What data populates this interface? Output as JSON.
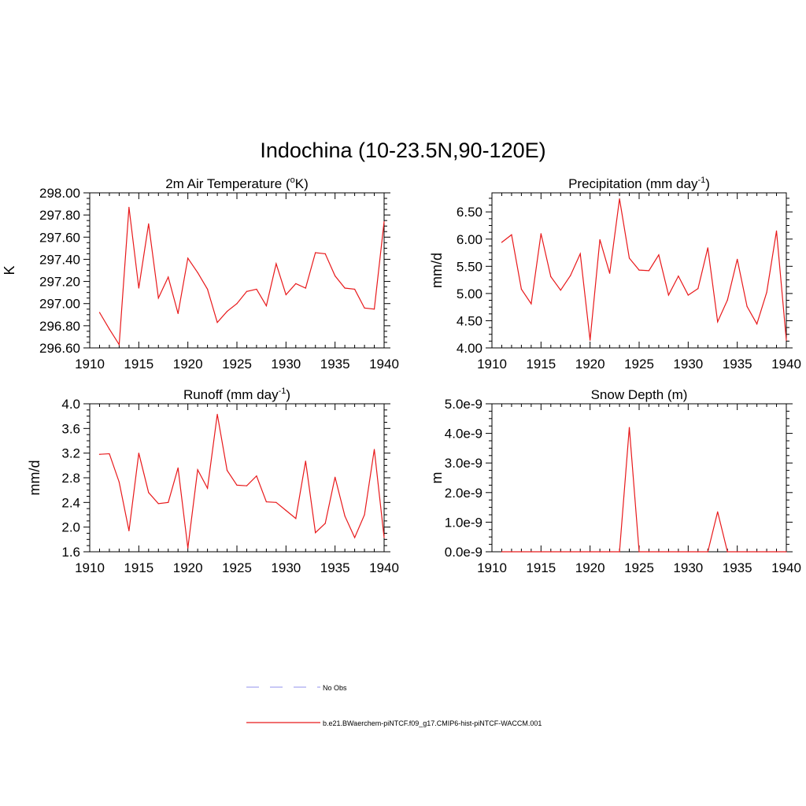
{
  "figure": {
    "title": "Indochina (10-23.5N,90-120E)"
  },
  "chart_data": [
    {
      "type": "line",
      "title_parts": [
        "2m Air Temperature (",
        "o",
        "K)"
      ],
      "ylabel": "K",
      "xlabel": "",
      "xlim": [
        1910,
        1940
      ],
      "ylim": [
        296.6,
        298.0
      ],
      "x_ticks": [
        1910,
        1915,
        1920,
        1925,
        1930,
        1935,
        1940
      ],
      "y_ticks": [
        296.6,
        296.8,
        297.0,
        297.2,
        297.4,
        297.6,
        297.8,
        298.0
      ],
      "y_tick_labels": [
        "296.60",
        "296.80",
        "297.00",
        "297.20",
        "297.40",
        "297.60",
        "297.80",
        "298.00"
      ],
      "series": [
        {
          "color": "#e8191b",
          "x": [
            1911,
            1912,
            1913,
            1914,
            1915,
            1916,
            1917,
            1918,
            1919,
            1920,
            1921,
            1922,
            1923,
            1924,
            1925,
            1926,
            1927,
            1928,
            1929,
            1930,
            1931,
            1932,
            1933,
            1934,
            1935,
            1936,
            1937,
            1938,
            1939,
            1940
          ],
          "values": [
            296.92,
            296.77,
            296.63,
            297.87,
            297.14,
            297.72,
            297.05,
            297.24,
            296.91,
            297.41,
            297.28,
            297.13,
            296.83,
            296.93,
            297.0,
            297.11,
            297.13,
            296.98,
            297.36,
            297.08,
            297.18,
            297.14,
            297.46,
            297.45,
            297.25,
            297.14,
            297.13,
            296.96,
            296.95,
            297.74
          ]
        }
      ]
    },
    {
      "type": "line",
      "title_parts": [
        "Precipitation (mm day",
        "-1",
        ")"
      ],
      "ylabel": "mm/d",
      "xlabel": "",
      "xlim": [
        1910,
        1940
      ],
      "ylim": [
        4.0,
        6.85
      ],
      "x_ticks": [
        1910,
        1915,
        1920,
        1925,
        1930,
        1935,
        1940
      ],
      "y_ticks": [
        4.0,
        4.5,
        5.0,
        5.5,
        6.0,
        6.5
      ],
      "y_tick_labels": [
        "4.00",
        "4.50",
        "5.00",
        "5.50",
        "6.00",
        "6.50"
      ],
      "series": [
        {
          "color": "#e8191b",
          "x": [
            1911,
            1912,
            1913,
            1914,
            1915,
            1916,
            1917,
            1918,
            1919,
            1920,
            1921,
            1922,
            1923,
            1924,
            1925,
            1926,
            1927,
            1928,
            1929,
            1930,
            1931,
            1932,
            1933,
            1934,
            1935,
            1936,
            1937,
            1938,
            1939,
            1940
          ],
          "values": [
            5.94,
            6.08,
            5.08,
            4.81,
            6.1,
            5.31,
            5.06,
            5.33,
            5.73,
            4.14,
            5.99,
            5.37,
            6.74,
            5.65,
            5.43,
            5.42,
            5.71,
            4.97,
            5.32,
            4.97,
            5.09,
            5.84,
            4.48,
            4.88,
            5.63,
            4.76,
            4.44,
            5.02,
            6.15,
            4.14
          ]
        }
      ]
    },
    {
      "type": "line",
      "title_parts": [
        "Runoff (mm day",
        "-1",
        ")"
      ],
      "ylabel": "mm/d",
      "xlabel": "",
      "xlim": [
        1910,
        1940
      ],
      "ylim": [
        1.6,
        4.0
      ],
      "x_ticks": [
        1910,
        1915,
        1920,
        1925,
        1930,
        1935,
        1940
      ],
      "y_ticks": [
        1.6,
        2.0,
        2.4,
        2.8,
        3.2,
        3.6,
        4.0
      ],
      "y_tick_labels": [
        "1.6",
        "2.0",
        "2.4",
        "2.8",
        "3.2",
        "3.6",
        "4.0"
      ],
      "series": [
        {
          "color": "#e8191b",
          "x": [
            1911,
            1912,
            1913,
            1914,
            1915,
            1916,
            1917,
            1918,
            1919,
            1920,
            1921,
            1922,
            1923,
            1924,
            1925,
            1926,
            1927,
            1928,
            1929,
            1930,
            1931,
            1932,
            1933,
            1934,
            1935,
            1936,
            1937,
            1938,
            1939,
            1940
          ],
          "values": [
            3.18,
            3.19,
            2.73,
            1.94,
            3.2,
            2.56,
            2.38,
            2.4,
            2.96,
            1.66,
            2.93,
            2.63,
            3.83,
            2.92,
            2.68,
            2.67,
            2.83,
            2.41,
            2.4,
            2.27,
            2.14,
            3.07,
            1.91,
            2.06,
            2.81,
            2.18,
            1.83,
            2.2,
            3.26,
            1.83
          ]
        }
      ]
    },
    {
      "type": "line",
      "title_parts": [
        "Snow Depth (m)"
      ],
      "ylabel": "m",
      "xlabel": "",
      "xlim": [
        1910,
        1940
      ],
      "ylim": [
        0,
        5e-09
      ],
      "x_ticks": [
        1910,
        1915,
        1920,
        1925,
        1930,
        1935,
        1940
      ],
      "y_ticks": [
        0,
        1e-09,
        2e-09,
        3e-09,
        4e-09,
        5e-09
      ],
      "y_tick_labels": [
        "0.0e-9",
        "1.0e-9",
        "2.0e-9",
        "3.0e-9",
        "4.0e-9",
        "5.0e-9"
      ],
      "series": [
        {
          "color": "#e8191b",
          "x": [
            1911,
            1912,
            1913,
            1914,
            1915,
            1916,
            1917,
            1918,
            1919,
            1920,
            1921,
            1922,
            1923,
            1924,
            1925,
            1926,
            1927,
            1928,
            1929,
            1930,
            1931,
            1932,
            1933,
            1934,
            1935,
            1936,
            1937,
            1938,
            1939,
            1940
          ],
          "values": [
            0,
            0,
            0,
            0,
            0,
            0,
            0,
            0,
            0,
            0,
            0,
            0,
            0,
            4.2e-09,
            0,
            0,
            0,
            0,
            0,
            0,
            0,
            0,
            1.35e-09,
            0,
            0,
            0,
            0,
            0,
            0,
            0
          ]
        }
      ]
    }
  ],
  "legend": {
    "items": [
      {
        "label": "No Obs",
        "color": "#a8a8f0",
        "style": "dashed"
      },
      {
        "label": "b.e21.BWaerchem-piNTCF.f09_g17.CMIP6-hist-piNTCF-WACCM.001",
        "color": "#e8191b",
        "style": "solid"
      }
    ]
  }
}
